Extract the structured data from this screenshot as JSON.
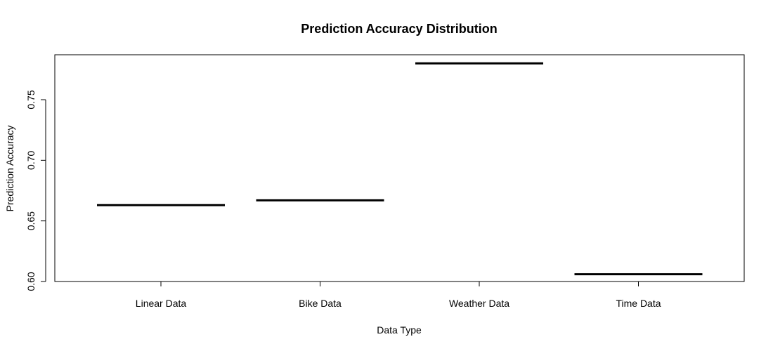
{
  "chart_data": {
    "type": "boxplot",
    "title": "Prediction Accuracy Distribution",
    "xlabel": "Data Type",
    "ylabel": "Prediction Accuracy",
    "categories": [
      "Linear Data",
      "Bike Data",
      "Weather Data",
      "Time Data"
    ],
    "values": [
      0.663,
      0.667,
      0.78,
      0.606
    ],
    "ylim": [
      0.6,
      0.78
    ],
    "yticks": [
      0.6,
      0.65,
      0.7,
      0.75
    ],
    "ytick_labels": [
      "0.60",
      "0.65",
      "0.70",
      "0.75"
    ],
    "grid": false,
    "colors": {
      "line": "#000000"
    }
  }
}
